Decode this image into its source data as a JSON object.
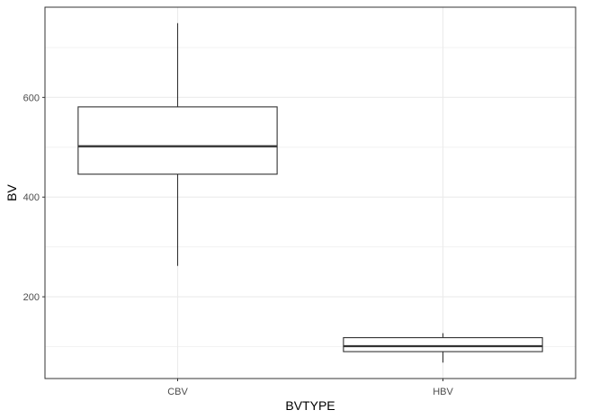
{
  "chart_data": {
    "type": "boxplot",
    "title": "",
    "xlabel": "BVTYPE",
    "ylabel": "BV",
    "categories": [
      "CBV",
      "HBV"
    ],
    "boxes": [
      {
        "category": "CBV",
        "whisker_low": 262,
        "q1": 446,
        "median": 502,
        "q3": 581,
        "whisker_high": 749
      },
      {
        "category": "HBV",
        "whisker_low": 68,
        "q1": 90,
        "median": 101,
        "q3": 118,
        "whisker_high": 127
      }
    ],
    "y_ticks": [
      200,
      400,
      600
    ],
    "y_tick_labels": [
      "200",
      "400",
      "600"
    ],
    "ylim": [
      36,
      781
    ],
    "grid": true,
    "legend": "none",
    "colors": {
      "box_line": "#333333",
      "grid": "#ebebeb",
      "panel_border": "#333333",
      "background": "#ffffff"
    }
  }
}
